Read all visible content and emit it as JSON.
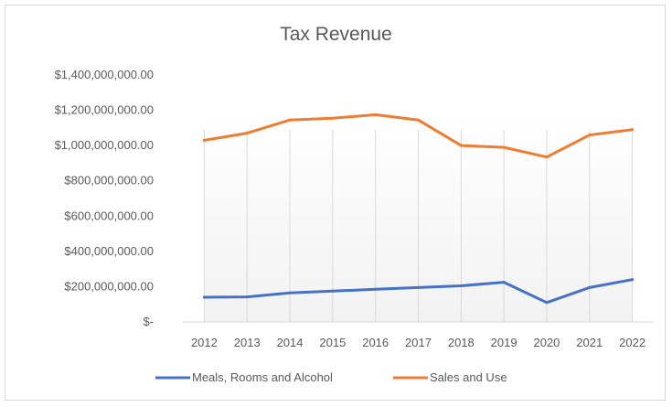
{
  "chart_data": {
    "type": "line",
    "title": "Tax Revenue",
    "xlabel": "",
    "ylabel": "",
    "x": [
      "2012",
      "2013",
      "2014",
      "2015",
      "2016",
      "2017",
      "2018",
      "2019",
      "2020",
      "2021",
      "2022"
    ],
    "ylim": [
      0,
      1400000000
    ],
    "y_ticks": [
      {
        "value": 0,
        "label": "$-"
      },
      {
        "value": 200000000,
        "label": "$200,000,000.00"
      },
      {
        "value": 400000000,
        "label": "$400,000,000.00"
      },
      {
        "value": 600000000,
        "label": "$600,000,000.00"
      },
      {
        "value": 800000000,
        "label": "$800,000,000.00"
      },
      {
        "value": 1000000000,
        "label": "$1,000,000,000.00"
      },
      {
        "value": 1200000000,
        "label": "$1,200,000,000.00"
      },
      {
        "value": 1400000000,
        "label": "$1,400,000,000.00"
      }
    ],
    "grid": "vertical",
    "legend_position": "bottom",
    "series": [
      {
        "name": "Meals, Rooms and Alcohol",
        "color": "#4472c4",
        "values": [
          140000000,
          142000000,
          165000000,
          175000000,
          185000000,
          195000000,
          205000000,
          225000000,
          110000000,
          195000000,
          240000000
        ]
      },
      {
        "name": "Sales and Use",
        "color": "#ed7d31",
        "values": [
          1030000000,
          1070000000,
          1145000000,
          1155000000,
          1175000000,
          1145000000,
          1000000000,
          990000000,
          935000000,
          1060000000,
          1090000000
        ]
      }
    ]
  }
}
